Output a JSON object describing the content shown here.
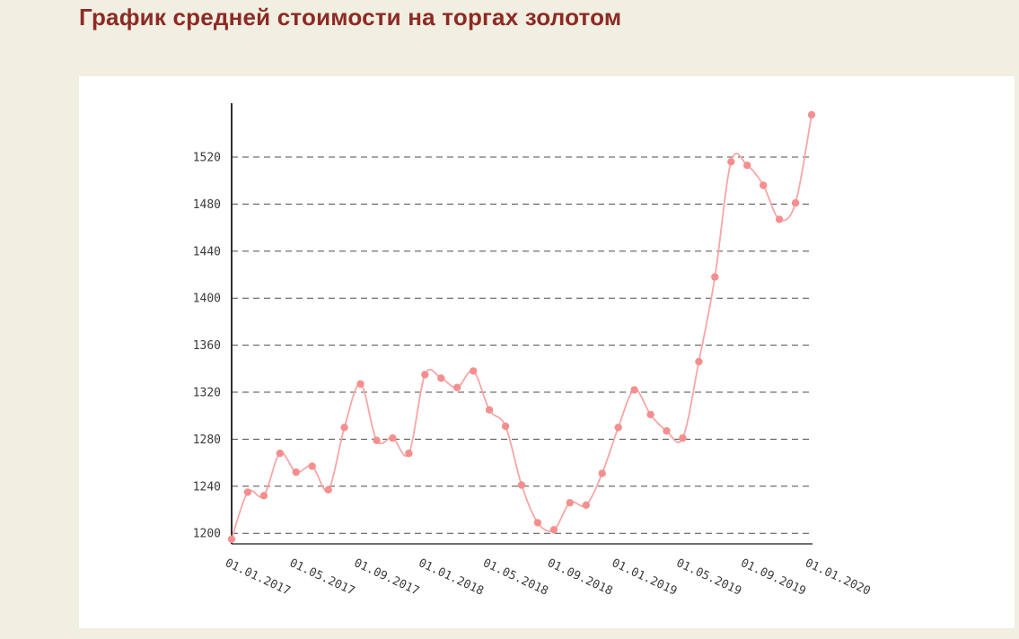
{
  "page": {
    "title": "График средней стоимости на торгах золотом",
    "title_color": "#8e2a25",
    "background_color": "#f0efe1",
    "card_background": "#ffffff"
  },
  "chart_data": {
    "type": "line",
    "title": "График средней стоимости на торгах золотом",
    "xlabel": "",
    "ylabel": "",
    "x_unit": "month",
    "x_tick_labels": [
      "01.01.2017",
      "01.05.2017",
      "01.09.2017",
      "01.01.2018",
      "01.05.2018",
      "01.09.2018",
      "01.01.2019",
      "01.05.2019",
      "01.09.2019",
      "01.01.2020"
    ],
    "x_tick_every": 4,
    "y_ticks": [
      1200,
      1240,
      1280,
      1320,
      1360,
      1400,
      1440,
      1480,
      1520
    ],
    "ylim": [
      1191,
      1562
    ],
    "grid": "dashed-horizontal",
    "legend": "none",
    "values": [
      1195,
      1235,
      1232,
      1268,
      1252,
      1257,
      1237,
      1290,
      1327,
      1279,
      1281,
      1268,
      1335,
      1332,
      1324,
      1338,
      1305,
      1291,
      1241,
      1209,
      1203,
      1226,
      1224,
      1251,
      1290,
      1322,
      1301,
      1287,
      1281,
      1346,
      1418,
      1516,
      1513,
      1496,
      1467,
      1481,
      1556
    ],
    "line_color": "#f8a6a6",
    "point_color": "#f58f8f",
    "grid_color": "#4d4d4d",
    "axis_color": "#1a1a1a",
    "tick_label_color": "#3a3a3a"
  }
}
